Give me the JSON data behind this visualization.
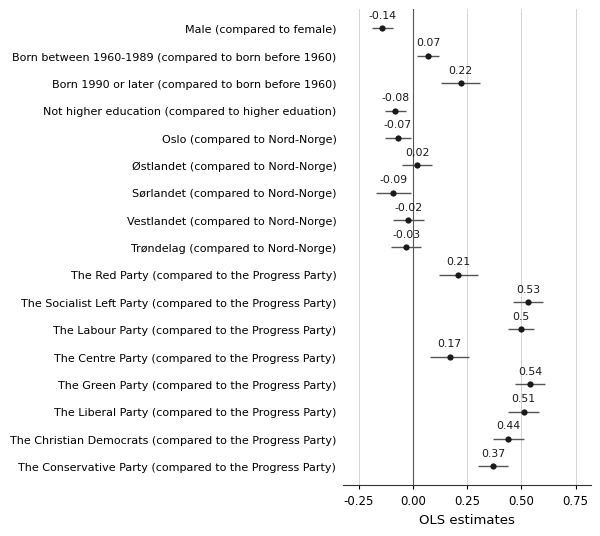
{
  "labels": [
    "Male (compared to female)",
    "Born between 1960-1989 (compared to born before 1960)",
    "Born 1990 or later (compared to born before 1960)",
    "Not higher education (compared to higher eduation)",
    "Oslo (compared to Nord-Norge)",
    "Østlandet (compared to Nord-Norge)",
    "Sørlandet (compared to Nord-Norge)",
    "Vestlandet (compared to Nord-Norge)",
    "Trøndelag (compared to Nord-Norge)",
    "The Red Party (compared to the Progress Party)",
    "The Socialist Left Party (compared to the Progress Party)",
    "The Labour Party (compared to the Progress Party)",
    "The Centre Party (compared to the Progress Party)",
    "The Green Party (compared to the Progress Party)",
    "The Liberal Party (compared to the Progress Party)",
    "The Christian Democrats (compared to the Progress Party)",
    "The Conservative Party (compared to the Progress Party)"
  ],
  "estimates": [
    -0.14,
    0.07,
    0.22,
    -0.08,
    -0.07,
    0.02,
    -0.09,
    -0.02,
    -0.03,
    0.21,
    0.53,
    0.5,
    0.17,
    0.54,
    0.51,
    0.44,
    0.37
  ],
  "ci_lower": [
    -0.19,
    0.02,
    0.13,
    -0.13,
    -0.13,
    -0.05,
    -0.17,
    -0.09,
    -0.1,
    0.12,
    0.46,
    0.44,
    0.08,
    0.47,
    0.44,
    0.37,
    0.3
  ],
  "ci_upper": [
    -0.09,
    0.12,
    0.31,
    -0.03,
    -0.01,
    0.09,
    -0.01,
    0.05,
    0.04,
    0.3,
    0.6,
    0.56,
    0.26,
    0.61,
    0.58,
    0.51,
    0.44
  ],
  "value_labels": [
    "-0.14",
    "0.07",
    "0.22",
    "-0.08",
    "-0.07",
    "0,02",
    "-0.09",
    "-0.02",
    "-0.03",
    "0.21",
    "0.53",
    "0.5",
    "0.17",
    "0.54",
    "0.51",
    "0.44",
    "0.37"
  ],
  "xlabel": "OLS estimates",
  "xlim": [
    -0.32,
    0.82
  ],
  "xticks": [
    -0.25,
    0.0,
    0.25,
    0.5,
    0.75
  ],
  "xtick_labels": [
    "-0.25",
    "0.00",
    "0.25",
    "0.50",
    "0.75"
  ],
  "dot_color": "#1a1a1a",
  "line_color": "#555555",
  "bg_color": "#ffffff",
  "grid_color": "#cccccc",
  "label_fontsize": 8.0,
  "tick_fontsize": 8.5,
  "xlabel_fontsize": 9.5,
  "value_fontsize": 7.8
}
